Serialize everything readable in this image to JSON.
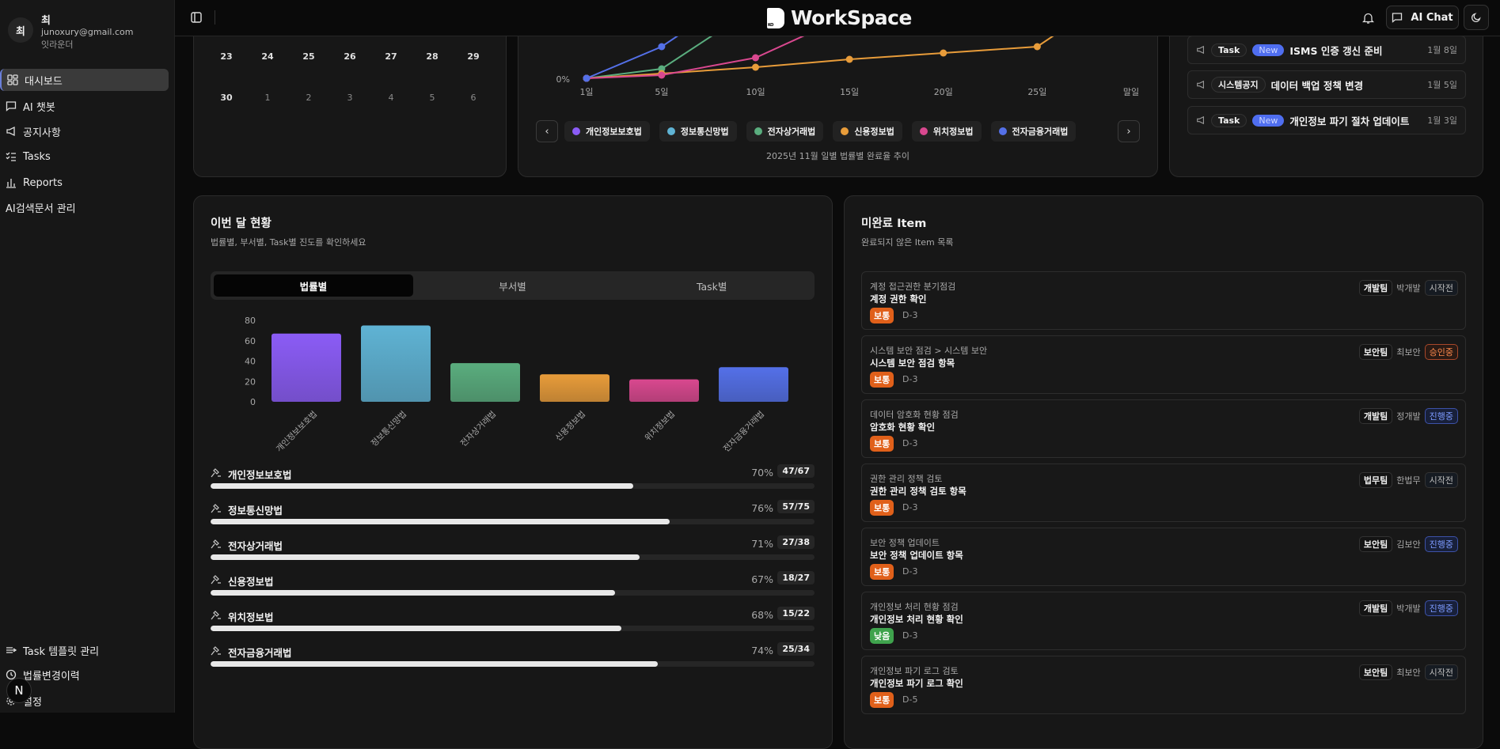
{
  "user": {
    "avatar": "최",
    "name": "최",
    "email": "junoxury@gmail.com",
    "role": "잇라운더"
  },
  "sidebar": {
    "items": [
      {
        "label": "대시보드",
        "icon": "dashboard-icon",
        "active": true
      },
      {
        "label": "AI 챗봇",
        "icon": "chat-icon"
      },
      {
        "label": "공지사항",
        "icon": "megaphone-icon"
      },
      {
        "label": "Tasks",
        "icon": "checklist-icon"
      },
      {
        "label": "Reports",
        "icon": "bar-chart-icon"
      },
      {
        "label": "AI검색문서 관리",
        "icon": "none"
      }
    ],
    "bottom_items": [
      {
        "label": "Task 템플릿 관리",
        "icon": "list-arrow-icon"
      },
      {
        "label": "법률변경이력",
        "icon": "history-icon"
      },
      {
        "label": "설정",
        "icon": "gear-icon"
      }
    ],
    "badge": "N"
  },
  "header": {
    "logo_text": "WorkSpace",
    "logo_mark": "KO",
    "ai_chat": "AI Chat"
  },
  "calendar": {
    "rows": [
      [
        "23",
        "24",
        "25",
        "26",
        "27",
        "28",
        "29"
      ],
      [
        "30",
        "1",
        "2",
        "3",
        "4",
        "5",
        "6"
      ]
    ]
  },
  "notices": [
    {
      "tag": "Task",
      "new": "New",
      "title": "ISMS 인증 갱신 준비",
      "date": "1월 8일"
    },
    {
      "tag": "시스템공지",
      "new": null,
      "title": "데이터 백업 정책 변경",
      "date": "1월 5일"
    },
    {
      "tag": "Task",
      "new": "New",
      "title": "개인정보 파기 절차 업데이트",
      "date": "1월 3일"
    }
  ],
  "trend_chart": {
    "type": "line",
    "caption": "2025년 11월 일별 법률별 완료율 추이",
    "y_tick_visible": "0%",
    "x_ticks": [
      {
        "day": 1,
        "label": "1일"
      },
      {
        "day": 5,
        "label": "5일"
      },
      {
        "day": 10,
        "label": "10일"
      },
      {
        "day": 15,
        "label": "15일"
      },
      {
        "day": 20,
        "label": "20일"
      },
      {
        "day": 25,
        "label": "25일"
      },
      {
        "day": 30,
        "label": "말일"
      }
    ],
    "series": [
      {
        "name": "개인정보보호법",
        "color": "#8b5cf6",
        "points": [
          [
            1,
            0
          ]
        ]
      },
      {
        "name": "정보통신망법",
        "color": "#5fb3d4",
        "points": [
          [
            1,
            0
          ]
        ]
      },
      {
        "name": "전자상거래법",
        "color": "#5aad7e",
        "points": [
          [
            1,
            0
          ],
          [
            5,
            6
          ],
          [
            10,
            45
          ]
        ]
      },
      {
        "name": "신용정보법",
        "color": "#e89c3a",
        "points": [
          [
            1,
            0
          ],
          [
            5,
            3
          ],
          [
            10,
            7
          ],
          [
            15,
            12
          ],
          [
            20,
            16
          ],
          [
            25,
            20
          ],
          [
            30,
            60
          ]
        ]
      },
      {
        "name": "위치정보법",
        "color": "#d9488f",
        "points": [
          [
            1,
            0
          ],
          [
            5,
            2
          ],
          [
            10,
            13
          ],
          [
            15,
            40
          ]
        ]
      },
      {
        "name": "전자금융거래법",
        "color": "#5470e8",
        "points": [
          [
            1,
            0
          ],
          [
            5,
            20
          ],
          [
            10,
            60
          ]
        ]
      }
    ]
  },
  "monthly": {
    "title": "이번 달 현황",
    "subtitle": "법률별, 부서별, Task별 진도를 확인하세요",
    "tabs": [
      {
        "label": "법률별",
        "active": true
      },
      {
        "label": "부서별"
      },
      {
        "label": "Task별"
      }
    ]
  },
  "chart_data": {
    "type": "bar",
    "categories": [
      "개인정보보호법",
      "정보통신망법",
      "전자상거래법",
      "신용정보법",
      "위치정보법",
      "전자금융거래법"
    ],
    "values": [
      67,
      75,
      38,
      27,
      22,
      34
    ],
    "colors": [
      "#8b5cf6",
      "#5fb3d4",
      "#5aad7e",
      "#e89c3a",
      "#d9488f",
      "#5470e8"
    ],
    "yticks": [
      0,
      20,
      40,
      60,
      80
    ],
    "ylim": [
      0,
      80
    ]
  },
  "progress": [
    {
      "name": "개인정보보호법",
      "pct": "70%",
      "count": "47/67",
      "value": 70
    },
    {
      "name": "정보통신망법",
      "pct": "76%",
      "count": "57/75",
      "value": 76
    },
    {
      "name": "전자상거래법",
      "pct": "71%",
      "count": "27/38",
      "value": 71
    },
    {
      "name": "신용정보법",
      "pct": "67%",
      "count": "18/27",
      "value": 67
    },
    {
      "name": "위치정보법",
      "pct": "68%",
      "count": "15/22",
      "value": 68
    },
    {
      "name": "전자금융거래법",
      "pct": "74%",
      "count": "25/34",
      "value": 74
    }
  ],
  "incomplete": {
    "title": "미완료 Item",
    "subtitle": "완료되지 않은 Item 목록",
    "items": [
      {
        "category": "계정 접근권한 분기점검",
        "name": "계정 권한 확인",
        "priority": "보통",
        "dday": "D-3",
        "team": "개발팀",
        "owner": "박개발",
        "status": "시작전"
      },
      {
        "category": "시스템 보안 점검 > 시스템 보안",
        "name": "시스템 보안 점검 항목",
        "priority": "보통",
        "dday": "D-3",
        "team": "보안팀",
        "owner": "최보안",
        "status": "승인중"
      },
      {
        "category": "데이터 암호화 현황 점검",
        "name": "암호화 현황 확인",
        "priority": "보통",
        "dday": "D-3",
        "team": "개발팀",
        "owner": "정개발",
        "status": "진행중"
      },
      {
        "category": "권한 관리 정책 검토",
        "name": "권한 관리 정책 검토 항목",
        "priority": "보통",
        "dday": "D-3",
        "team": "법무팀",
        "owner": "한법무",
        "status": "시작전"
      },
      {
        "category": "보안 정책 업데이트",
        "name": "보안 정책 업데이트 항목",
        "priority": "보통",
        "dday": "D-3",
        "team": "보안팀",
        "owner": "김보안",
        "status": "진행중"
      },
      {
        "category": "개인정보 처리 현황 점검",
        "name": "개인정보 처리 현황 확인",
        "priority": "낮음",
        "dday": "D-3",
        "team": "개발팀",
        "owner": "박개발",
        "status": "진행중"
      },
      {
        "category": "개인정보 파기 로그 검토",
        "name": "개인정보 파기 로그 확인",
        "priority": "보통",
        "dday": "D-5",
        "team": "보안팀",
        "owner": "최보안",
        "status": "시작전"
      }
    ]
  },
  "colors": {
    "priority_normal": "#e0601a",
    "priority_low": "#3fa34d",
    "status_progress": "#7d9bff",
    "status_approval": "#ff8a4d"
  }
}
